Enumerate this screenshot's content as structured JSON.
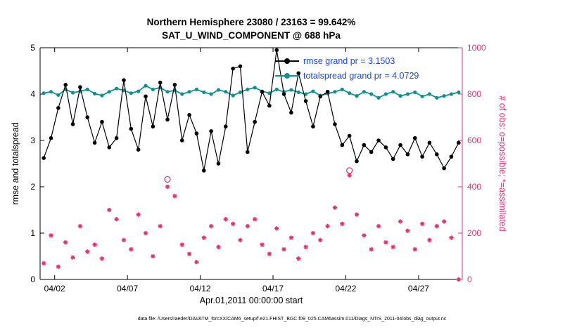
{
  "figure": {
    "title_line1": "Northern Hemisphere 23080 / 23163 = 99.642%",
    "title_line2": "SAT_U_WIND_COMPONENT @ 688 hPa",
    "xlabel": "Apr.01,2011 00:00:00 start",
    "ylabel_left": "rmse and totalspread",
    "ylabel_right": "# of obs: o=possible; *=assimilated",
    "caption": "data file: /Users/raeder/DAI/ATM_forcXX/CAM6_setup/f.e21.FHIST_BGC.f09_025.CAM6assim.011/Diags_NTrS_2011-04/obs_diag_output.nc",
    "legend": [
      {
        "label": "rmse grand pr = 3.1503",
        "color": "#000000"
      },
      {
        "label": "totalspread grand pr = 4.0729",
        "color": "#0f9090"
      }
    ],
    "colors": {
      "rmse": "#000000",
      "totalspread": "#0f9090",
      "obs": "#e0336e",
      "legend_text": "#1c49e6"
    }
  },
  "chart_data": {
    "type": "line",
    "x_domain": [
      1,
      30
    ],
    "x_start_day": 1.25,
    "x_step_days": 0.5,
    "xticks": [
      {
        "day": 2,
        "label": "04/02"
      },
      {
        "day": 7,
        "label": "04/07"
      },
      {
        "day": 12,
        "label": "04/12"
      },
      {
        "day": 17,
        "label": "04/17"
      },
      {
        "day": 22,
        "label": "04/22"
      },
      {
        "day": 27,
        "label": "04/27"
      }
    ],
    "ylim_left": [
      0,
      5
    ],
    "yticks_left": [
      0,
      1,
      2,
      3,
      4,
      5
    ],
    "ylim_right": [
      0,
      1000
    ],
    "yticks_right": [
      0,
      200,
      400,
      600,
      800,
      1000
    ],
    "series": [
      {
        "name": "rmse",
        "axis": "left",
        "marker": "filled-circle",
        "values": [
          2.62,
          3.05,
          3.7,
          4.2,
          3.35,
          4.15,
          3.5,
          2.95,
          3.4,
          2.85,
          3.05,
          4.3,
          3.25,
          2.8,
          3.95,
          3.3,
          4.25,
          3.45,
          4.2,
          3.0,
          3.55,
          3.15,
          2.35,
          3.2,
          2.5,
          3.3,
          4.55,
          4.6,
          2.75,
          3.4,
          4.05,
          3.75,
          4.95,
          4.0,
          3.6,
          4.45,
          3.85,
          3.3,
          3.95,
          4.05,
          3.35,
          2.9,
          3.1,
          2.55,
          2.9,
          2.75,
          3.0,
          2.85,
          2.6,
          2.9,
          2.7,
          3.05,
          2.65,
          2.95,
          2.7,
          2.4,
          2.65,
          2.95
        ]
      },
      {
        "name": "totalspread",
        "axis": "left",
        "marker": "filled-circle",
        "values": [
          4.02,
          4.05,
          3.98,
          4.1,
          4.03,
          4.06,
          4.1,
          4.01,
          3.97,
          4.05,
          4.12,
          4.08,
          4.02,
          4.06,
          4.18,
          4.1,
          4.14,
          4.05,
          4.08,
          4.0,
          4.05,
          4.1,
          4.04,
          4.0,
          4.09,
          4.05,
          3.97,
          4.04,
          4.1,
          4.14,
          4.06,
          4.02,
          4.1,
          4.05,
          4.09,
          4.04,
          4.0,
          4.06,
          3.97,
          4.01,
          4.05,
          4.1,
          4.02,
          3.96,
          4.05,
          4.0,
          3.92,
          4.0,
          4.05,
          3.96,
          4.0,
          4.04,
          3.95,
          4.0,
          3.92,
          3.96,
          4.0,
          4.04
        ]
      },
      {
        "name": "observations",
        "axis": "right",
        "marker": "asterisk",
        "values": [
          70,
          190,
          55,
          160,
          95,
          230,
          120,
          150,
          90,
          300,
          260,
          170,
          130,
          280,
          200,
          100,
          230,
          400,
          360,
          150,
          110,
          75,
          180,
          230,
          140,
          260,
          240,
          170,
          230,
          260,
          150,
          110,
          220,
          130,
          180,
          90,
          140,
          200,
          170,
          230,
          310,
          240,
          450,
          280,
          190,
          130,
          230,
          160,
          140,
          250,
          210,
          130,
          240,
          170,
          230,
          250,
          180,
          0
        ]
      }
    ],
    "possible_circles": [
      {
        "index": 17,
        "value": 432
      },
      {
        "index": 42,
        "value": 470
      }
    ]
  }
}
